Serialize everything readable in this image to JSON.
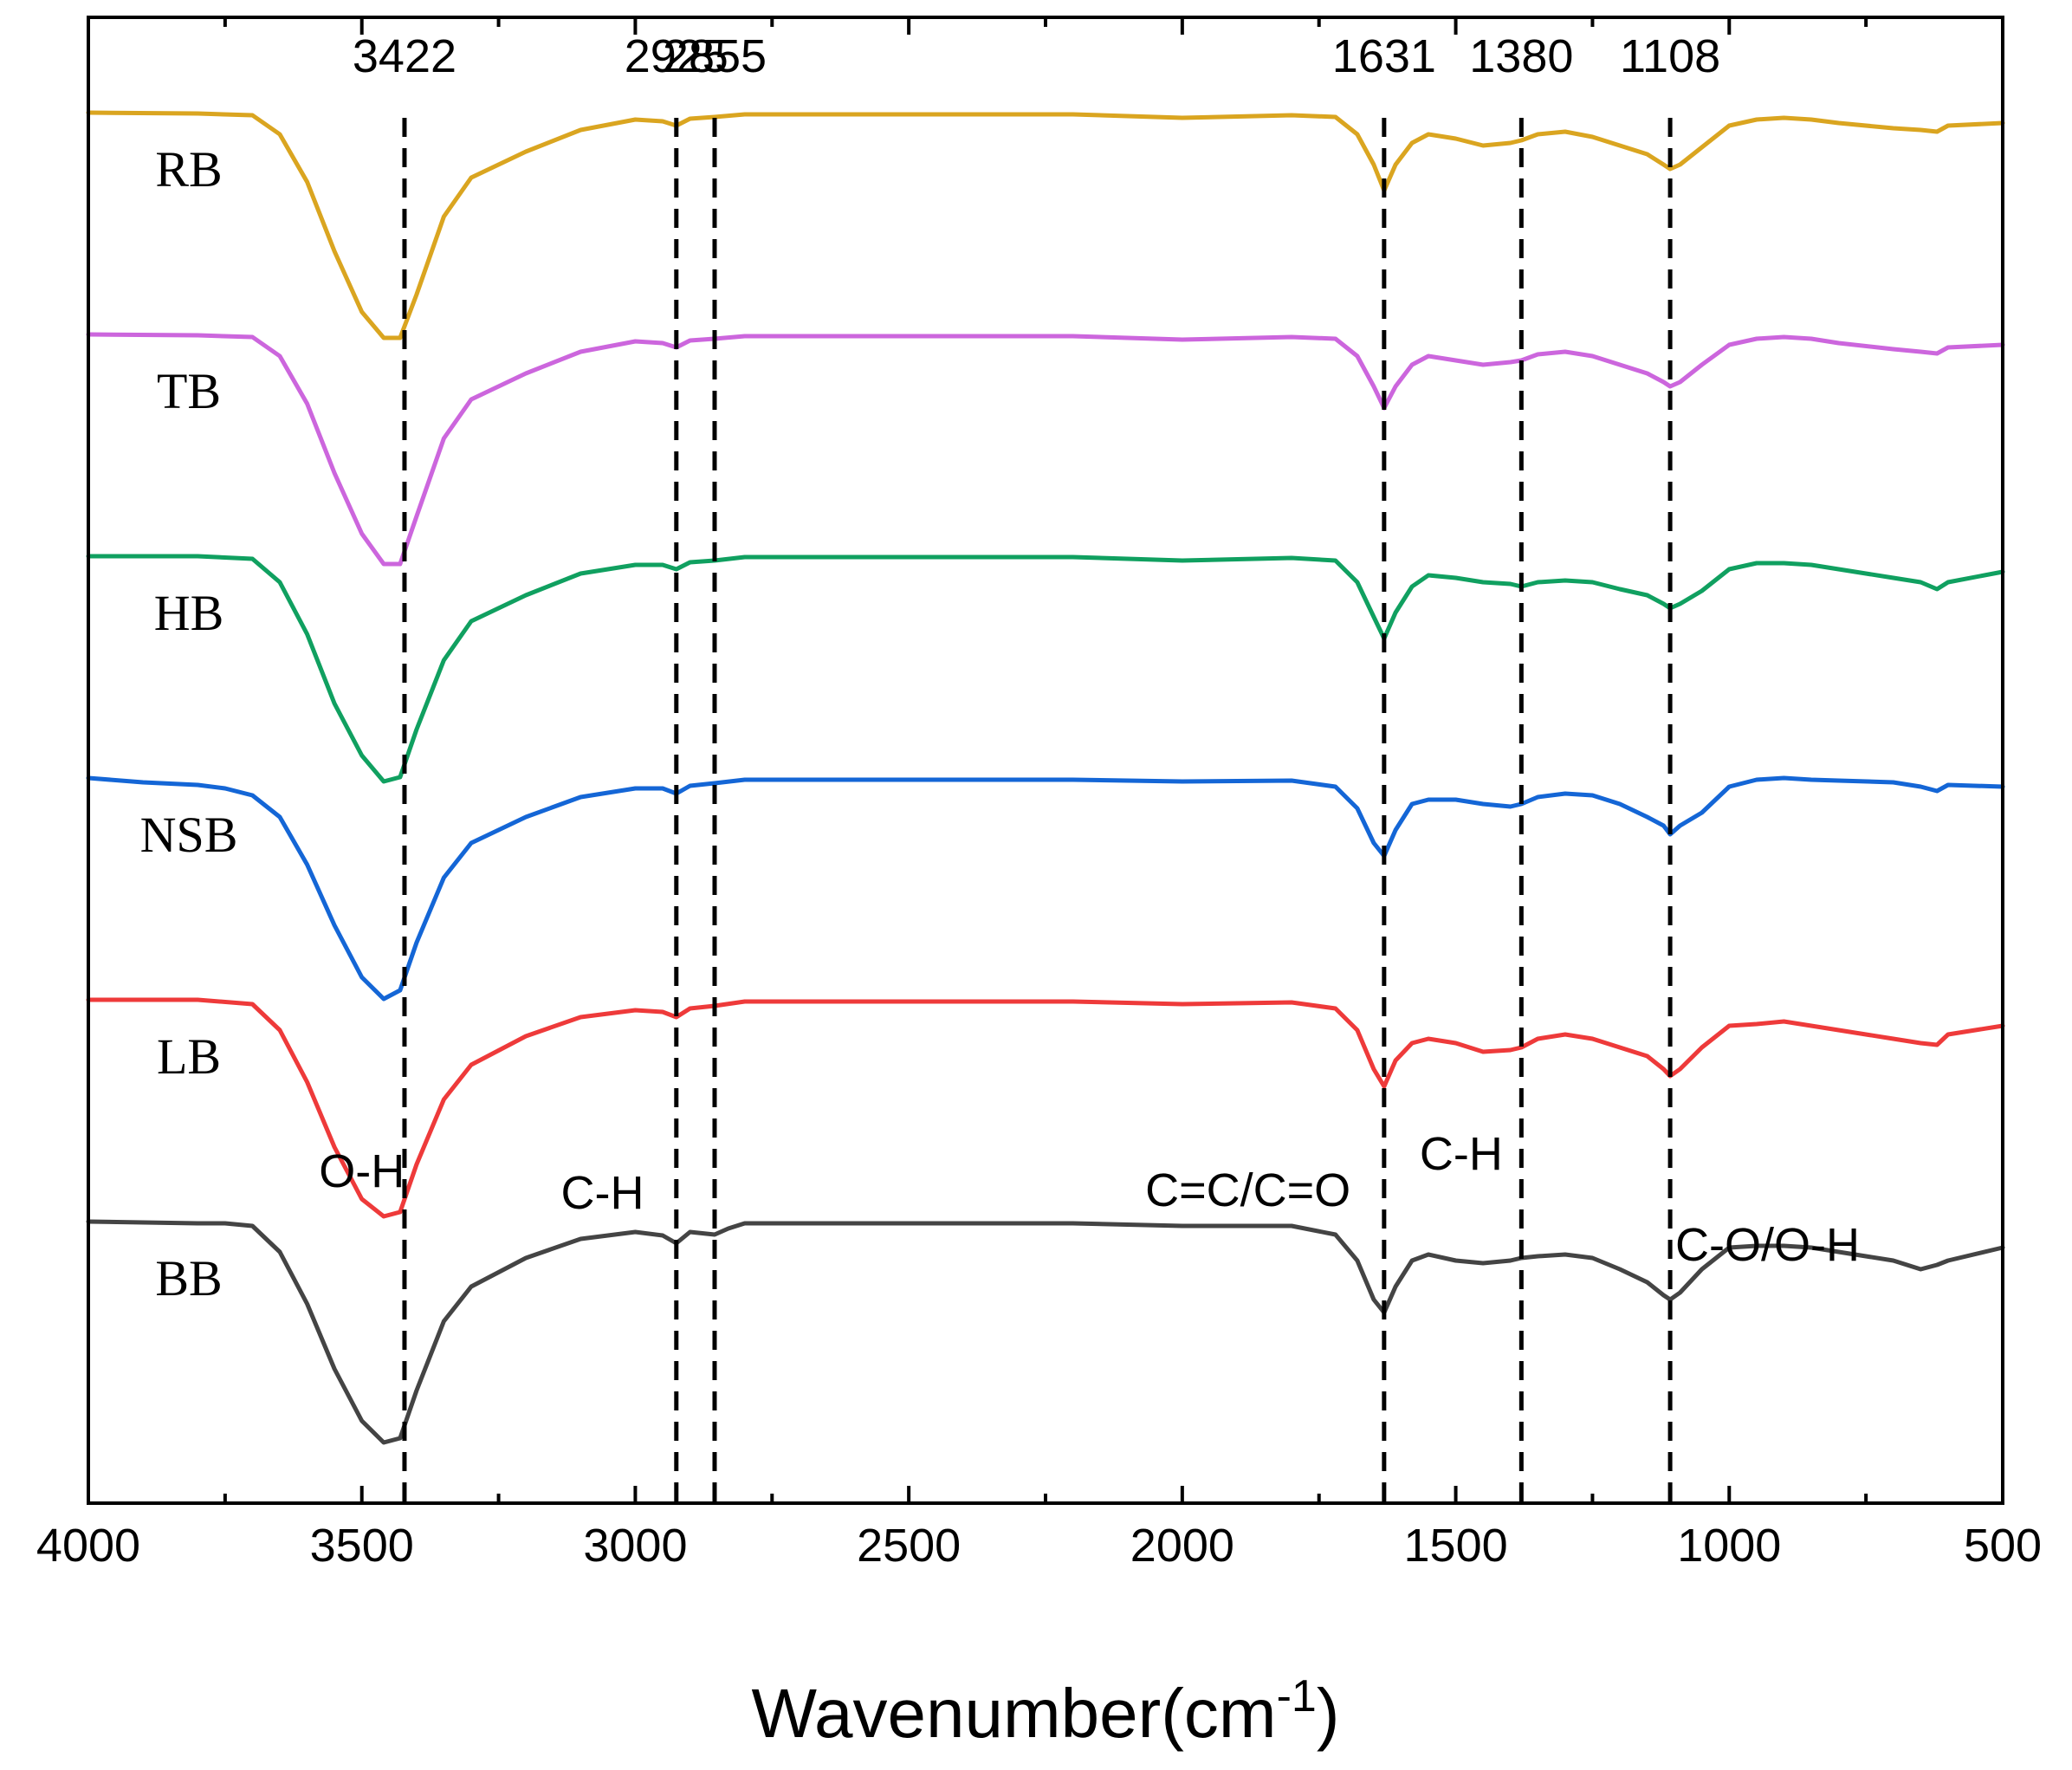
{
  "chart_data": {
    "type": "line",
    "title": "",
    "xlabel": "Wavenumber(cm",
    "xlabel_sup": "-1",
    "xlabel_close": ")",
    "ylabel": "",
    "xlim": [
      4000,
      500
    ],
    "x_ticks": [
      4000,
      3500,
      3000,
      2500,
      2000,
      1500,
      1000,
      500
    ],
    "x_ticks_labels": [
      "4000",
      "3500",
      "3000",
      "2500",
      "2000",
      "1500",
      "1000",
      "500"
    ],
    "x_minor_ticks": [
      3750,
      3250,
      2750,
      2250,
      1750,
      1250,
      750
    ],
    "grid": false,
    "y_axis": "arbitrary transmittance, offset stacked",
    "peaks": [
      {
        "wavenumber": 3422,
        "label": "3422"
      },
      {
        "wavenumber": 2925,
        "label": "2925"
      },
      {
        "wavenumber": 2855,
        "label": "2855"
      },
      {
        "wavenumber": 1631,
        "label": "1631"
      },
      {
        "wavenumber": 1380,
        "label": "1380"
      },
      {
        "wavenumber": 1108,
        "label": "1108"
      }
    ],
    "band_labels": [
      {
        "text": "O-H",
        "wavenumber": 3500,
        "level": 0.3
      },
      {
        "text": "C-H",
        "wavenumber": 3060,
        "level": 0.05
      },
      {
        "text": "C=C/C=O",
        "wavenumber": 1880,
        "level": 0.08
      },
      {
        "text": "C-H",
        "wavenumber": 1490,
        "level": 0.5
      },
      {
        "text": "C-O/O-H",
        "wavenumber": 930,
        "level": -0.55
      }
    ],
    "series": [
      {
        "name": "RB",
        "color": "#DAA520",
        "offset": 5,
        "x": [
          4000,
          3800,
          3700,
          3650,
          3600,
          3550,
          3500,
          3460,
          3430,
          3400,
          3350,
          3300,
          3200,
          3100,
          3000,
          2950,
          2925,
          2900,
          2855,
          2800,
          2500,
          2200,
          2000,
          1800,
          1720,
          1680,
          1650,
          1631,
          1610,
          1580,
          1550,
          1500,
          1450,
          1400,
          1380,
          1350,
          1300,
          1250,
          1200,
          1150,
          1120,
          1108,
          1090,
          1050,
          1000,
          950,
          900,
          850,
          800,
          700,
          650,
          620,
          600,
          500
        ],
        "y": [
          0,
          -0.01,
          -0.03,
          -0.25,
          -0.8,
          -1.6,
          -2.3,
          -2.6,
          -2.6,
          -2.1,
          -1.2,
          -0.75,
          -0.45,
          -0.2,
          -0.08,
          -0.1,
          -0.15,
          -0.07,
          -0.05,
          -0.02,
          -0.02,
          -0.02,
          -0.06,
          -0.03,
          -0.05,
          -0.25,
          -0.6,
          -0.9,
          -0.6,
          -0.35,
          -0.25,
          -0.3,
          -0.38,
          -0.35,
          -0.32,
          -0.25,
          -0.22,
          -0.28,
          -0.38,
          -0.48,
          -0.6,
          -0.65,
          -0.6,
          -0.4,
          -0.15,
          -0.08,
          -0.06,
          -0.08,
          -0.12,
          -0.18,
          -0.2,
          -0.22,
          -0.15,
          -0.12
        ]
      },
      {
        "name": "TB",
        "color": "#CC66DD",
        "offset": 4,
        "x": [
          4000,
          3800,
          3700,
          3650,
          3600,
          3550,
          3500,
          3460,
          3430,
          3400,
          3350,
          3300,
          3200,
          3100,
          3000,
          2950,
          2925,
          2900,
          2855,
          2800,
          2500,
          2200,
          2000,
          1800,
          1720,
          1680,
          1650,
          1631,
          1610,
          1580,
          1550,
          1500,
          1450,
          1400,
          1380,
          1350,
          1300,
          1250,
          1200,
          1150,
          1120,
          1108,
          1090,
          1050,
          1000,
          950,
          900,
          850,
          800,
          700,
          650,
          620,
          600,
          500
        ],
        "y": [
          0,
          -0.01,
          -0.03,
          -0.25,
          -0.8,
          -1.6,
          -2.3,
          -2.65,
          -2.65,
          -2.1,
          -1.2,
          -0.75,
          -0.45,
          -0.2,
          -0.08,
          -0.1,
          -0.15,
          -0.07,
          -0.05,
          -0.02,
          -0.02,
          -0.02,
          -0.06,
          -0.03,
          -0.05,
          -0.25,
          -0.6,
          -0.85,
          -0.6,
          -0.35,
          -0.25,
          -0.3,
          -0.35,
          -0.32,
          -0.3,
          -0.23,
          -0.2,
          -0.25,
          -0.35,
          -0.45,
          -0.55,
          -0.6,
          -0.55,
          -0.35,
          -0.12,
          -0.05,
          -0.03,
          -0.05,
          -0.1,
          -0.17,
          -0.2,
          -0.22,
          -0.15,
          -0.12
        ]
      },
      {
        "name": "HB",
        "color": "#10A060",
        "offset": 3,
        "x": [
          4000,
          3800,
          3700,
          3650,
          3600,
          3550,
          3500,
          3460,
          3430,
          3400,
          3350,
          3300,
          3200,
          3100,
          3000,
          2950,
          2925,
          2900,
          2855,
          2800,
          2500,
          2200,
          2000,
          1800,
          1720,
          1680,
          1650,
          1631,
          1610,
          1580,
          1550,
          1500,
          1450,
          1400,
          1380,
          1350,
          1300,
          1250,
          1200,
          1150,
          1120,
          1108,
          1090,
          1050,
          1000,
          950,
          900,
          850,
          800,
          700,
          650,
          620,
          600,
          500
        ],
        "y": [
          0,
          0.0,
          -0.03,
          -0.3,
          -0.9,
          -1.7,
          -2.3,
          -2.6,
          -2.55,
          -2.0,
          -1.2,
          -0.75,
          -0.45,
          -0.2,
          -0.1,
          -0.1,
          -0.15,
          -0.07,
          -0.05,
          -0.01,
          -0.01,
          -0.01,
          -0.05,
          -0.02,
          -0.05,
          -0.3,
          -0.7,
          -0.95,
          -0.65,
          -0.35,
          -0.22,
          -0.25,
          -0.3,
          -0.32,
          -0.35,
          -0.3,
          -0.28,
          -0.3,
          -0.38,
          -0.45,
          -0.55,
          -0.6,
          -0.55,
          -0.4,
          -0.15,
          -0.08,
          -0.08,
          -0.1,
          -0.15,
          -0.25,
          -0.3,
          -0.38,
          -0.3,
          -0.18
        ]
      },
      {
        "name": "NSB",
        "color": "#1466D6",
        "offset": 2,
        "x": [
          4000,
          3900,
          3800,
          3750,
          3700,
          3650,
          3600,
          3550,
          3500,
          3460,
          3430,
          3400,
          3350,
          3300,
          3200,
          3100,
          3000,
          2950,
          2925,
          2900,
          2855,
          2800,
          2500,
          2200,
          2000,
          1800,
          1720,
          1680,
          1650,
          1631,
          1610,
          1580,
          1550,
          1500,
          1450,
          1400,
          1380,
          1350,
          1300,
          1250,
          1200,
          1150,
          1120,
          1108,
          1090,
          1050,
          1000,
          950,
          900,
          850,
          800,
          700,
          650,
          620,
          600,
          500
        ],
        "y": [
          0,
          -0.05,
          -0.08,
          -0.12,
          -0.2,
          -0.45,
          -1.0,
          -1.7,
          -2.3,
          -2.55,
          -2.45,
          -1.9,
          -1.15,
          -0.75,
          -0.45,
          -0.22,
          -0.12,
          -0.12,
          -0.18,
          -0.09,
          -0.06,
          -0.02,
          -0.02,
          -0.02,
          -0.04,
          -0.03,
          -0.1,
          -0.35,
          -0.75,
          -0.9,
          -0.6,
          -0.3,
          -0.25,
          -0.25,
          -0.3,
          -0.33,
          -0.3,
          -0.22,
          -0.18,
          -0.2,
          -0.3,
          -0.45,
          -0.55,
          -0.65,
          -0.55,
          -0.4,
          -0.1,
          -0.02,
          0.0,
          -0.02,
          -0.03,
          -0.05,
          -0.1,
          -0.15,
          -0.08,
          -0.1
        ]
      },
      {
        "name": "LB",
        "color": "#EE3A3A",
        "offset": 1,
        "x": [
          4000,
          3800,
          3700,
          3650,
          3600,
          3550,
          3500,
          3460,
          3430,
          3400,
          3350,
          3300,
          3200,
          3100,
          3000,
          2950,
          2925,
          2900,
          2855,
          2800,
          2500,
          2200,
          2000,
          1800,
          1720,
          1680,
          1650,
          1631,
          1610,
          1580,
          1550,
          1500,
          1450,
          1400,
          1380,
          1350,
          1300,
          1250,
          1200,
          1150,
          1120,
          1108,
          1090,
          1050,
          1000,
          950,
          900,
          850,
          800,
          700,
          650,
          620,
          600,
          500
        ],
        "y": [
          0,
          0.0,
          -0.05,
          -0.35,
          -0.95,
          -1.7,
          -2.3,
          -2.5,
          -2.45,
          -1.9,
          -1.15,
          -0.75,
          -0.42,
          -0.2,
          -0.12,
          -0.14,
          -0.2,
          -0.1,
          -0.07,
          -0.02,
          -0.02,
          -0.02,
          -0.05,
          -0.03,
          -0.1,
          -0.35,
          -0.8,
          -1.0,
          -0.7,
          -0.5,
          -0.45,
          -0.5,
          -0.6,
          -0.58,
          -0.55,
          -0.45,
          -0.4,
          -0.45,
          -0.55,
          -0.65,
          -0.8,
          -0.88,
          -0.8,
          -0.55,
          -0.3,
          -0.28,
          -0.25,
          -0.3,
          -0.35,
          -0.45,
          -0.5,
          -0.52,
          -0.4,
          -0.3
        ]
      },
      {
        "name": "BB",
        "color": "#444444",
        "offset": 0,
        "x": [
          4000,
          3800,
          3750,
          3700,
          3650,
          3600,
          3550,
          3500,
          3460,
          3430,
          3400,
          3350,
          3300,
          3200,
          3100,
          3000,
          2950,
          2925,
          2900,
          2870,
          2855,
          2830,
          2800,
          2500,
          2350,
          2200,
          2000,
          1800,
          1720,
          1680,
          1650,
          1631,
          1610,
          1580,
          1550,
          1500,
          1450,
          1400,
          1380,
          1350,
          1300,
          1250,
          1200,
          1150,
          1120,
          1108,
          1090,
          1050,
          1000,
          950,
          900,
          850,
          800,
          700,
          650,
          620,
          600,
          500
        ],
        "y": [
          0,
          -0.02,
          -0.02,
          -0.05,
          -0.35,
          -0.95,
          -1.7,
          -2.3,
          -2.55,
          -2.5,
          -1.95,
          -1.15,
          -0.75,
          -0.42,
          -0.2,
          -0.12,
          -0.16,
          -0.25,
          -0.12,
          -0.14,
          -0.15,
          -0.08,
          -0.02,
          -0.02,
          -0.02,
          -0.02,
          -0.05,
          -0.05,
          -0.15,
          -0.45,
          -0.9,
          -1.05,
          -0.75,
          -0.45,
          -0.38,
          -0.45,
          -0.48,
          -0.45,
          -0.42,
          -0.4,
          -0.38,
          -0.42,
          -0.55,
          -0.7,
          -0.85,
          -0.9,
          -0.82,
          -0.55,
          -0.3,
          -0.28,
          -0.28,
          -0.3,
          -0.35,
          -0.45,
          -0.55,
          -0.5,
          -0.45,
          -0.3
        ]
      }
    ]
  }
}
